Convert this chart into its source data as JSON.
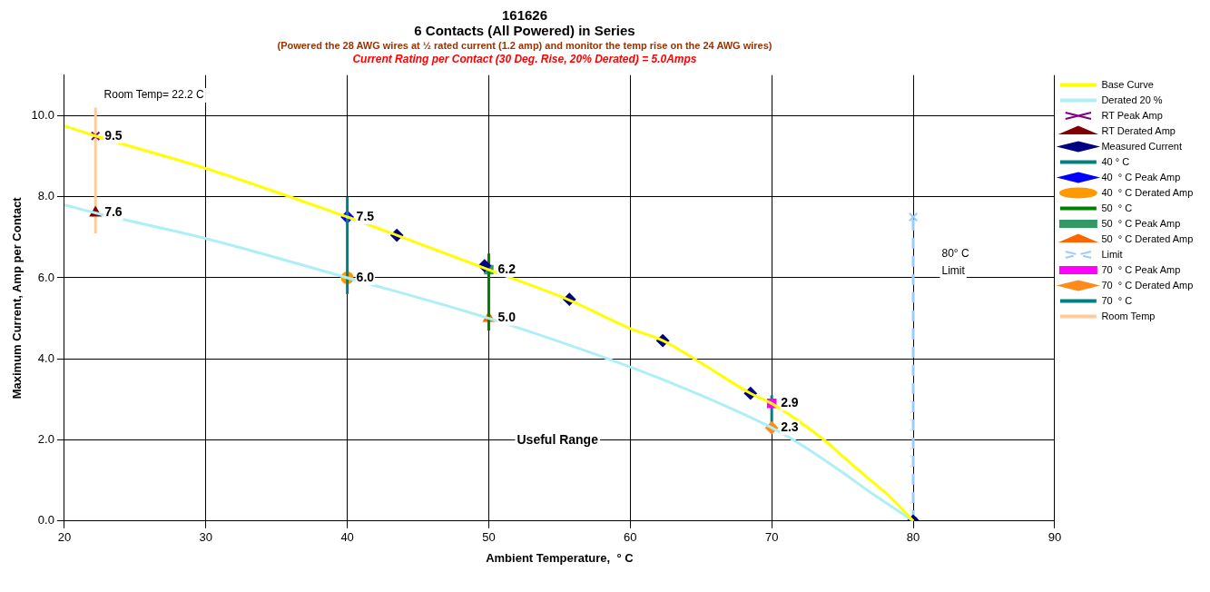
{
  "chart_data": {
    "type": "line",
    "title": "161626",
    "subtitle": "6 Contacts (All Powered) in Series",
    "xlabel": "Ambient Temperature,  ° C",
    "ylabel": "Maximum Current, Amp per Contact",
    "xlim": [
      20,
      90
    ],
    "xticks": [
      20,
      30,
      40,
      50,
      60,
      70,
      80,
      90
    ],
    "ylim": [
      0,
      11
    ],
    "yticks": [
      {
        "value": 0,
        "label": "0.0"
      },
      {
        "value": 2,
        "label": "2.0"
      },
      {
        "value": 4,
        "label": "4.0"
      },
      {
        "value": 6,
        "label": "6.0"
      },
      {
        "value": 8,
        "label": "8.0"
      },
      {
        "value": 10,
        "label": "10.0"
      }
    ],
    "grid": true,
    "legend": "right",
    "annotations": [
      "(Powered the 28 AWG wires at ½ rated current (1.2 amp) and monitor the temp rise on the 24 AWG wires)",
      "Current Rating per Contact (30 Deg. Rise, 20% Derated)  = 5.0Amps",
      "Room Temp= 22.2 C",
      "80° C",
      "Limit",
      "Useful Range"
    ],
    "series": [
      {
        "name": "Base Curve",
        "type": "line",
        "color": "#ffff00",
        "marker": "none",
        "x": [
          20,
          22.2,
          30,
          40,
          43.5,
          50,
          55.7,
          60,
          62.3,
          65,
          68.5,
          70,
          73.7,
          75,
          77,
          78.5,
          80
        ],
        "values": [
          9.75,
          9.5,
          8.7,
          7.5,
          7.05,
          6.2,
          5.45,
          4.75,
          4.45,
          3.9,
          3.15,
          2.9,
          2.0,
          1.6,
          1.0,
          0.55,
          0
        ]
      },
      {
        "name": "Derated 20 %",
        "type": "line",
        "color": "#aeeef6",
        "marker": "none",
        "x": [
          20,
          22.2,
          30,
          40,
          50,
          60,
          65,
          70,
          72,
          75,
          77,
          78.5,
          80
        ],
        "values": [
          7.8,
          7.6,
          6.97,
          6.0,
          5.0,
          3.8,
          3.1,
          2.3,
          1.9,
          1.2,
          0.7,
          0.35,
          0
        ]
      },
      {
        "name": "RT Peak Amp",
        "type": "scatter",
        "color": "#800080",
        "marker": "cross",
        "x": [
          22.2
        ],
        "values": [
          9.5
        ],
        "value_labels": [
          "9.5"
        ]
      },
      {
        "name": "RT Derated Amp",
        "type": "scatter",
        "color": "#800000",
        "marker": "triangle",
        "x": [
          22.2
        ],
        "values": [
          7.6
        ],
        "value_labels": [
          "7.6"
        ]
      },
      {
        "name": "Measured Current",
        "type": "scatter",
        "color": "#000080",
        "marker": "diamond",
        "x": [
          43.5,
          49.7,
          55.7,
          62.3,
          68.5,
          80
        ],
        "values": [
          7.05,
          6.3,
          5.47,
          4.45,
          3.15,
          0
        ]
      },
      {
        "name": "40 ° C",
        "type": "line",
        "color": "#008080",
        "marker": "none",
        "x": [
          40,
          40
        ],
        "values": [
          5.6,
          8.0
        ]
      },
      {
        "name": "40  ° C Peak Amp",
        "type": "scatter",
        "color": "#0000ff",
        "marker": "diamond",
        "x": [
          40
        ],
        "values": [
          7.5
        ],
        "value_labels": [
          "7.5"
        ]
      },
      {
        "name": "40  ° C Derated Amp",
        "type": "scatter",
        "color": "#ff9900",
        "marker": "circle",
        "x": [
          40
        ],
        "values": [
          6.0
        ],
        "value_labels": [
          "6.0"
        ]
      },
      {
        "name": "50  ° C",
        "type": "line",
        "color": "#008000",
        "marker": "none",
        "x": [
          50,
          50
        ],
        "values": [
          4.7,
          6.6
        ]
      },
      {
        "name": "50  ° C Peak Amp",
        "type": "scatter",
        "color": "#339966",
        "marker": "square",
        "x": [
          50
        ],
        "values": [
          6.2
        ],
        "value_labels": [
          "6.2"
        ]
      },
      {
        "name": "50  ° C Derated Amp",
        "type": "scatter",
        "color": "#ff6600",
        "marker": "triangle",
        "x": [
          50
        ],
        "values": [
          5.0
        ],
        "value_labels": [
          "5.0"
        ]
      },
      {
        "name": "Limit",
        "type": "line",
        "color": "#99ccff",
        "marker": "cross",
        "line_style": "dashed",
        "x": [
          80,
          80
        ],
        "values": [
          0,
          7.5
        ]
      },
      {
        "name": "70  ° C Peak Amp",
        "type": "scatter",
        "color": "#ff00ff",
        "marker": "square",
        "x": [
          70
        ],
        "values": [
          2.9
        ],
        "value_labels": [
          "2.9"
        ]
      },
      {
        "name": "70  ° C Derated Amp",
        "type": "scatter",
        "color": "#ff8c1a",
        "marker": "diamond",
        "x": [
          70
        ],
        "values": [
          2.3
        ],
        "value_labels": [
          "2.3"
        ]
      },
      {
        "name": "70  ° C",
        "type": "line",
        "color": "#008080",
        "marker": "none",
        "x": [
          70,
          70
        ],
        "values": [
          2.2,
          3.1
        ]
      },
      {
        "name": "Room Temp",
        "type": "line",
        "color": "#ffcc99",
        "marker": "none",
        "x": [
          22.2,
          22.2
        ],
        "values": [
          7.1,
          10.2
        ]
      }
    ]
  }
}
